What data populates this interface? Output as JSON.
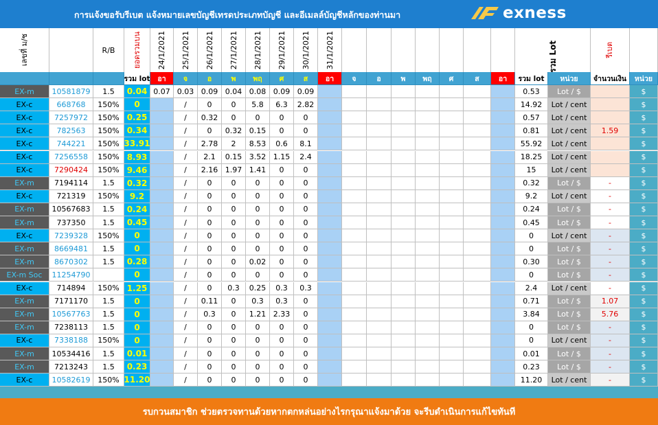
{
  "banner": {
    "title": "การแจ้งขอรับรีเบต   แจ้งหมายเลขบัญชีเทรดประเภทบัญชี และอีเมลล์บัญชีหลักของท่านมา",
    "logo_text": "exness",
    "logo_icon": "exness-logo-icon"
  },
  "header": {
    "account_col": "เลขที่ ม/ช",
    "rb_col": "R/B",
    "rounded_lot_col": "ยอดรวมบน",
    "dates": [
      "24/1/2021",
      "25/1/2021",
      "26/1/2021",
      "27/1/2021",
      "28/1/2021",
      "29/1/2021",
      "30/1/2021",
      "31/1/2021"
    ],
    "total_lot_vertical": "ยอดรวม Lot",
    "rebate_vertical": "รีเบต"
  },
  "day_row": {
    "total_lot": "รวม lot",
    "days1": [
      "อา",
      "จ",
      "อ",
      "พ",
      "พฤ",
      "ศ",
      "ส",
      "อา"
    ],
    "days2": [
      "จ",
      "อ",
      "พ",
      "พฤ",
      "ศ",
      "ส",
      "อา"
    ],
    "total_lot2": "รวม lot",
    "unit": "หน่วย",
    "amount": "จำนวนเงิน",
    "unit2": "หน่วย"
  },
  "rows": [
    {
      "type": "EX-m",
      "acct": "10581879",
      "rb": "1.5",
      "sum": "0.04",
      "d": [
        "0.07",
        "0.03",
        "0.09",
        "0.04",
        "0.08",
        "0.09",
        "0.09"
      ],
      "total": "0.53",
      "unit": "Lot / $",
      "amount": "",
      "cur": "$"
    },
    {
      "type": "EX-c",
      "acct": "668768",
      "rb": "150%",
      "sum": "0",
      "d": [
        "",
        "/",
        "0",
        "0",
        "5.8",
        "6.3",
        "2.82"
      ],
      "total": "14.92",
      "unit": "Lot / cent",
      "amount": "",
      "cur": "$"
    },
    {
      "type": "EX-c",
      "acct": "7257972",
      "rb": "150%",
      "sum": "0.25",
      "d": [
        "",
        "/",
        "0.32",
        "0",
        "0",
        "0",
        "0"
      ],
      "total": "0.57",
      "unit": "Lot / cent",
      "amount": "",
      "cur": "$"
    },
    {
      "type": "EX-c",
      "acct": "782563",
      "rb": "150%",
      "sum": "0.34",
      "d": [
        "",
        "/",
        "0",
        "0.32",
        "0.15",
        "0",
        "0"
      ],
      "total": "0.81",
      "unit": "Lot / cent",
      "amount": "1.59",
      "cur": "$"
    },
    {
      "type": "EX-c",
      "acct": "744221",
      "rb": "150%",
      "sum": "33.91",
      "d": [
        "",
        "/",
        "2.78",
        "2",
        "8.53",
        "0.6",
        "8.1"
      ],
      "total": "55.92",
      "unit": "Lot / cent",
      "amount": "",
      "cur": "$"
    },
    {
      "type": "EX-c",
      "acct": "7256558",
      "rb": "150%",
      "sum": "8.93",
      "d": [
        "",
        "/",
        "2.1",
        "0.15",
        "3.52",
        "1.15",
        "2.4"
      ],
      "total": "18.25",
      "unit": "Lot / cent",
      "amount": "",
      "cur": "$"
    },
    {
      "type": "EX-c",
      "acct": "7290424",
      "rb": "150%",
      "sum": "9.46",
      "d": [
        "",
        "/",
        "2.16",
        "1.97",
        "1.41",
        "0",
        "0"
      ],
      "total": "15",
      "unit": "Lot / cent",
      "amount": "",
      "cur": "$"
    },
    {
      "type": "EX-m",
      "acct": "7194114",
      "rb": "1.5",
      "sum": "0.32",
      "d": [
        "",
        "/",
        "0",
        "0",
        "0",
        "0",
        "0"
      ],
      "total": "0.32",
      "unit": "Lot / $",
      "amount": "-",
      "cur": "$"
    },
    {
      "type": "EX-c",
      "acct": "721319",
      "rb": "150%",
      "sum": "9.2",
      "d": [
        "",
        "/",
        "0",
        "0",
        "0",
        "0",
        "0"
      ],
      "total": "9.2",
      "unit": "Lot / cent",
      "amount": "-",
      "cur": "$"
    },
    {
      "type": "EX-m",
      "acct": "10567683",
      "rb": "1.5",
      "sum": "0.24",
      "d": [
        "",
        "/",
        "0",
        "0",
        "0",
        "0",
        "0"
      ],
      "total": "0.24",
      "unit": "Lot / $",
      "amount": "-",
      "cur": "$"
    },
    {
      "type": "EX-m",
      "acct": "737350",
      "rb": "1.5",
      "sum": "0.45",
      "d": [
        "",
        "/",
        "0",
        "0",
        "0",
        "0",
        "0"
      ],
      "total": "0.45",
      "unit": "Lot / $",
      "amount": "-",
      "cur": "$"
    },
    {
      "type": "EX-c",
      "acct": "7239328",
      "rb": "150%",
      "sum": "0",
      "d": [
        "",
        "/",
        "0",
        "0",
        "0",
        "0",
        "0"
      ],
      "total": "0",
      "unit": "Lot / cent",
      "amount": "-",
      "cur": "$"
    },
    {
      "type": "EX-m",
      "acct": "8669481",
      "rb": "1.5",
      "sum": "0",
      "d": [
        "",
        "/",
        "0",
        "0",
        "0",
        "0",
        "0"
      ],
      "total": "0",
      "unit": "Lot / $",
      "amount": "-",
      "cur": "$"
    },
    {
      "type": "EX-m",
      "acct": "8670302",
      "rb": "1.5",
      "sum": "0.28",
      "d": [
        "",
        "/",
        "0",
        "0",
        "0.02",
        "0",
        "0"
      ],
      "total": "0.30",
      "unit": "Lot / $",
      "amount": "-",
      "cur": "$"
    },
    {
      "type": "EX-m Soc",
      "acct": "11254790",
      "rb": "",
      "sum": "0",
      "d": [
        "",
        "/",
        "0",
        "0",
        "0",
        "0",
        "0"
      ],
      "total": "0",
      "unit": "Lot / $",
      "amount": "-",
      "cur": "$"
    },
    {
      "type": "EX-c",
      "acct": "714894",
      "rb": "150%",
      "sum": "1.25",
      "d": [
        "",
        "/",
        "0",
        "0.3",
        "0.25",
        "0.3",
        "0.3"
      ],
      "total": "2.4",
      "unit": "Lot / cent",
      "amount": "-",
      "cur": "$"
    },
    {
      "type": "EX-m",
      "acct": "7171170",
      "rb": "1.5",
      "sum": "0",
      "d": [
        "",
        "/",
        "0.11",
        "0",
        "0.3",
        "0.3",
        "0"
      ],
      "total": "0.71",
      "unit": "Lot / $",
      "amount": "1.07",
      "cur": "$"
    },
    {
      "type": "EX-m",
      "acct": "10567763",
      "rb": "1.5",
      "sum": "0",
      "d": [
        "",
        "/",
        "0.3",
        "0",
        "1.21",
        "2.33",
        "0"
      ],
      "total": "3.84",
      "unit": "Lot / $",
      "amount": "5.76",
      "cur": "$"
    },
    {
      "type": "EX-m",
      "acct": "7238113",
      "rb": "1.5",
      "sum": "0",
      "d": [
        "",
        "/",
        "0",
        "0",
        "0",
        "0",
        "0"
      ],
      "total": "0",
      "unit": "Lot / $",
      "amount": "-",
      "cur": "$"
    },
    {
      "type": "EX-c",
      "acct": "7338188",
      "rb": "150%",
      "sum": "0",
      "d": [
        "",
        "/",
        "0",
        "0",
        "0",
        "0",
        "0"
      ],
      "total": "0",
      "unit": "Lot / cent",
      "amount": "-",
      "cur": "$"
    },
    {
      "type": "EX-m",
      "acct": "10534416",
      "rb": "1.5",
      "sum": "0.01",
      "d": [
        "",
        "/",
        "0",
        "0",
        "0",
        "0",
        "0"
      ],
      "total": "0.01",
      "unit": "Lot / $",
      "amount": "-",
      "cur": "$"
    },
    {
      "type": "EX-m",
      "acct": "7213243",
      "rb": "1.5",
      "sum": "0.23",
      "d": [
        "",
        "/",
        "0",
        "0",
        "0",
        "0",
        "0"
      ],
      "total": "0.23",
      "unit": "Lot / $",
      "amount": "-",
      "cur": "$"
    },
    {
      "type": "EX-c",
      "acct": "10582619",
      "rb": "150%",
      "sum": "11.20",
      "d": [
        "",
        "/",
        "0",
        "0",
        "0",
        "0",
        "0"
      ],
      "total": "11.20",
      "unit": "Lot / cent",
      "amount": "-",
      "cur": "$"
    }
  ],
  "footer": {
    "text": "รบกวนสมาชิก ช่วยตรวจทานด้วยหากตกหล่นอย่างไรกรุณาแจ้งมาด้วย จะรีบดำเนินการแก้ไขทันที"
  },
  "colors": {
    "banner": "#1e7fcf",
    "footer": "#f07b12",
    "ex_m_bg": "#595959",
    "ex_c_bg": "#00b0f0",
    "day_header_bg": "#41a3d2",
    "weekend_col": "#a9d1f5",
    "yellow_sum": "#ffff00",
    "red": "#ff0000"
  }
}
